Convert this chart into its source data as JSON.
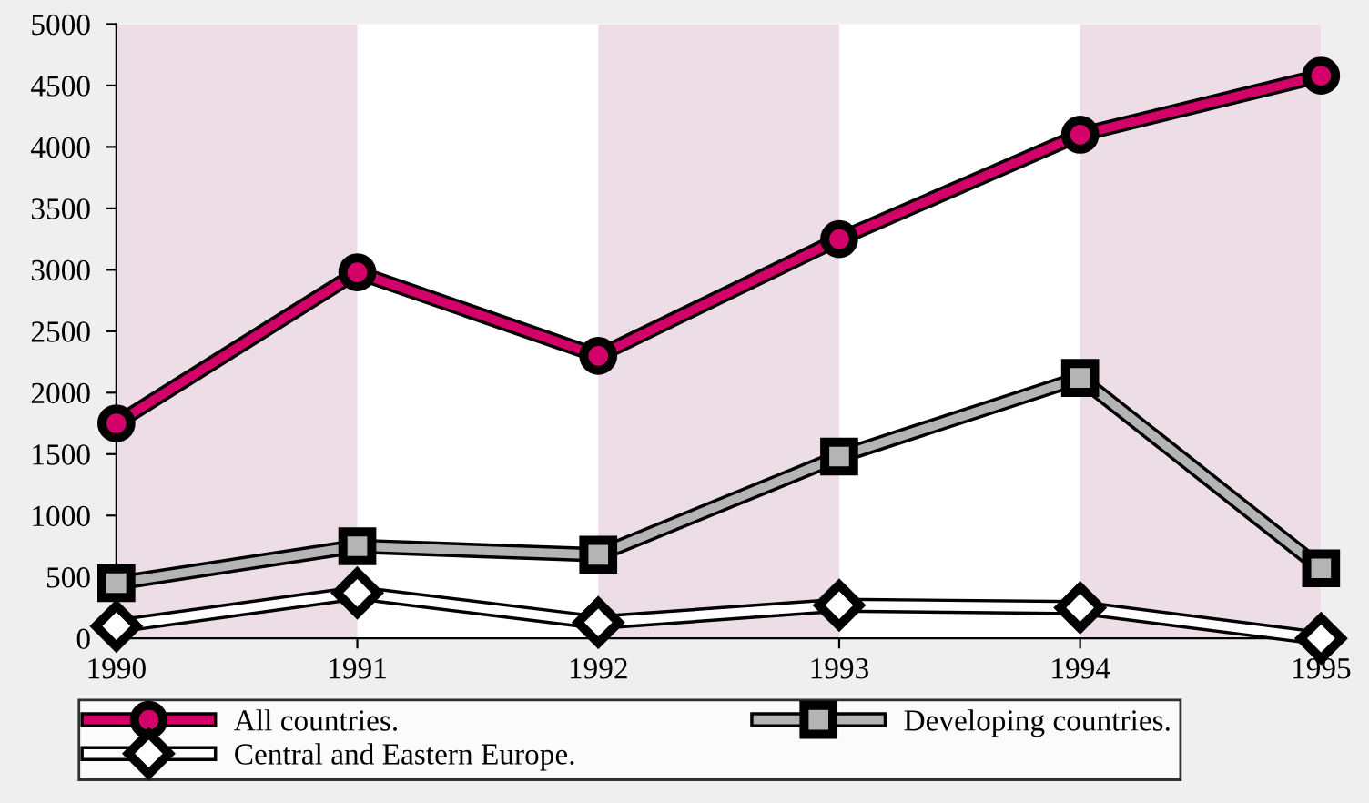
{
  "chart_data": {
    "type": "line",
    "x": [
      1990,
      1991,
      1992,
      1993,
      1994,
      1995
    ],
    "series": [
      {
        "name": "All countries.",
        "color": "#d4006a",
        "marker": "circle",
        "values": [
          1750,
          2980,
          2300,
          3250,
          4100,
          4580
        ]
      },
      {
        "name": "Central and Eastern Europe.",
        "color": "#ffffff",
        "marker": "diamond",
        "values": [
          100,
          370,
          130,
          270,
          250,
          0
        ]
      },
      {
        "name": "Developing countries.",
        "color": "#b4b4b4",
        "marker": "square",
        "values": [
          450,
          750,
          680,
          1480,
          2120,
          570
        ]
      }
    ],
    "xlim": [
      1990,
      1995
    ],
    "xticks": [
      1990,
      1991,
      1992,
      1993,
      1994,
      1995
    ],
    "ylim": [
      0,
      5000
    ],
    "yticks": [
      0,
      500,
      1000,
      1500,
      2000,
      2500,
      3000,
      3500,
      4000,
      4500,
      5000
    ],
    "bands": [
      {
        "axis": "x",
        "from": 1990,
        "to": 1991,
        "color": "#eddde6"
      },
      {
        "axis": "x",
        "from": 1992,
        "to": 1993,
        "color": "#eddde6"
      },
      {
        "axis": "x",
        "from": 1994,
        "to": 1995,
        "color": "#eddde6"
      }
    ],
    "grid": false,
    "legend": "bottom",
    "line_style": "solid"
  }
}
